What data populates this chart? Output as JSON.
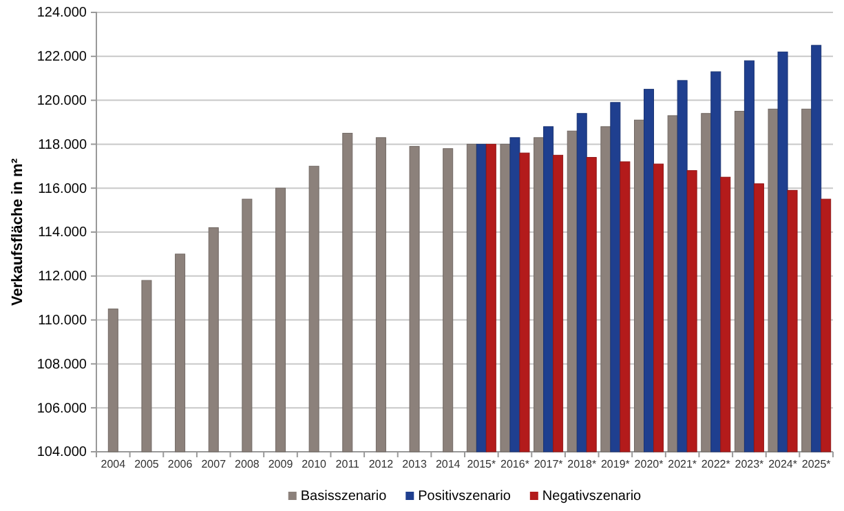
{
  "chart_data": {
    "type": "bar",
    "ylabel": "Verkaufsfläche in m²",
    "categories": [
      "2004",
      "2005",
      "2006",
      "2007",
      "2008",
      "2009",
      "2010",
      "2011",
      "2012",
      "2013",
      "2014",
      "2015*",
      "2016*",
      "2017*",
      "2018*",
      "2019*",
      "2020*",
      "2021*",
      "2022*",
      "2023*",
      "2024*",
      "2025*"
    ],
    "series": [
      {
        "name": "Basisszenario",
        "color": "#8c817b",
        "values": [
          110500,
          111800,
          113000,
          114200,
          115500,
          116000,
          117000,
          118500,
          118300,
          117900,
          117800,
          118000,
          118000,
          118300,
          118600,
          118800,
          119100,
          119300,
          119400,
          119500,
          119600,
          119600
        ]
      },
      {
        "name": "Positivszenario",
        "color": "#1f3f8f",
        "values": [
          null,
          null,
          null,
          null,
          null,
          null,
          null,
          null,
          null,
          null,
          null,
          118000,
          118300,
          118800,
          119400,
          119900,
          120500,
          120900,
          121300,
          121800,
          122200,
          122500
        ]
      },
      {
        "name": "Negativszenario",
        "color": "#b31b1b",
        "values": [
          null,
          null,
          null,
          null,
          null,
          null,
          null,
          null,
          null,
          null,
          null,
          118000,
          117600,
          117500,
          117400,
          117200,
          117100,
          116800,
          116500,
          116200,
          115900,
          115500
        ]
      }
    ],
    "ylim": [
      104000,
      124000
    ],
    "yticks": [
      {
        "value": 104000,
        "label": "104.000"
      },
      {
        "value": 106000,
        "label": "106.000"
      },
      {
        "value": 108000,
        "label": "108.000"
      },
      {
        "value": 110000,
        "label": "110.000"
      },
      {
        "value": 112000,
        "label": "112.000"
      },
      {
        "value": 114000,
        "label": "114.000"
      },
      {
        "value": 116000,
        "label": "116.000"
      },
      {
        "value": 118000,
        "label": "118.000"
      },
      {
        "value": 120000,
        "label": "120.000"
      },
      {
        "value": 122000,
        "label": "122.000"
      },
      {
        "value": 124000,
        "label": "124.000"
      }
    ],
    "grid": "y",
    "legend": "bottom"
  }
}
